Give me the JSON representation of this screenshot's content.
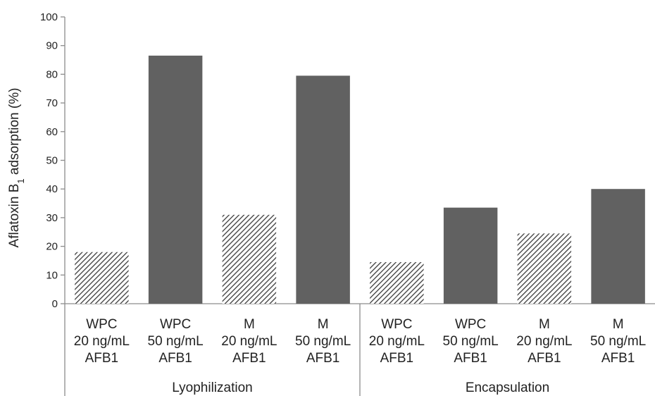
{
  "chart_data": {
    "type": "bar",
    "ylabel_prefix": "Aflatoxin B",
    "ylabel_sub": "1",
    "ylabel_suffix": " adsorption (%)",
    "ylim": [
      0,
      100
    ],
    "yticks": [
      "0",
      "10",
      "20",
      "30",
      "40",
      "50",
      "60",
      "70",
      "80",
      "90",
      "100"
    ],
    "grid": false,
    "groups": [
      {
        "label": "Lyophilization",
        "categories": [
          {
            "lines": [
              "WPC",
              "20 ng/mL",
              "AFB1"
            ],
            "value": 18,
            "pattern": "hatched"
          },
          {
            "lines": [
              "WPC",
              "50 ng/mL",
              "AFB1"
            ],
            "value": 86.5,
            "pattern": "solid"
          },
          {
            "lines": [
              "M",
              "20 ng/mL",
              "AFB1"
            ],
            "value": 31,
            "pattern": "hatched"
          },
          {
            "lines": [
              "M",
              "50 ng/mL",
              "AFB1"
            ],
            "value": 79.5,
            "pattern": "solid"
          }
        ]
      },
      {
        "label": "Encapsulation",
        "categories": [
          {
            "lines": [
              "WPC",
              "20 ng/mL",
              "AFB1"
            ],
            "value": 14.5,
            "pattern": "hatched"
          },
          {
            "lines": [
              "WPC",
              "50 ng/mL",
              "AFB1"
            ],
            "value": 33.5,
            "pattern": "solid"
          },
          {
            "lines": [
              "M",
              "20 ng/mL",
              "AFB1"
            ],
            "value": 24.5,
            "pattern": "hatched"
          },
          {
            "lines": [
              "M",
              "50 ng/mL",
              "AFB1"
            ],
            "value": 40,
            "pattern": "solid"
          }
        ]
      }
    ],
    "colors": {
      "solid": "#616161",
      "hatch": "#3a3a3a",
      "axis": "#8c8c8c"
    }
  }
}
